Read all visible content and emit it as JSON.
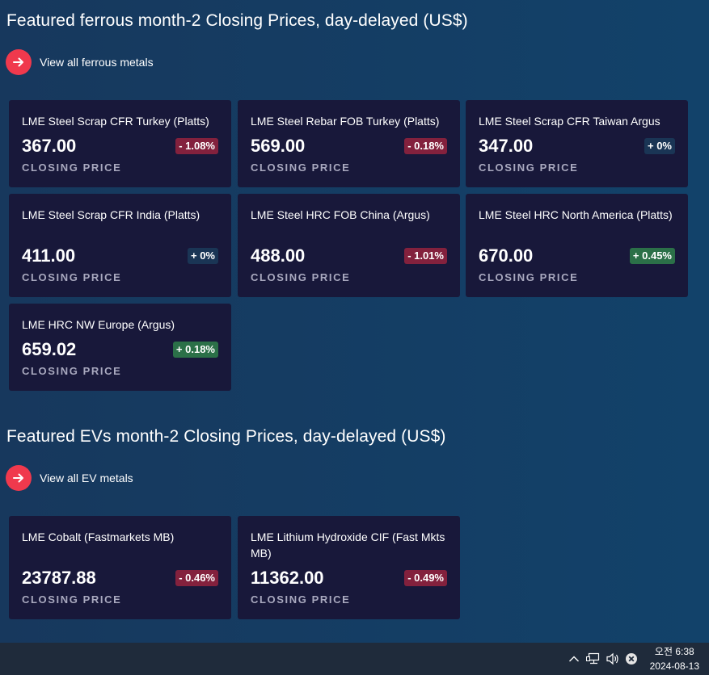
{
  "ferrous": {
    "title": "Featured ferrous month-2 Closing Prices, day-delayed (US$)",
    "view_all": "View all ferrous metals",
    "cards": [
      {
        "name": "LME Steel Scrap CFR Turkey (Platts)",
        "price": "367.00",
        "change": "- 1.08%",
        "closing": "CLOSING PRICE"
      },
      {
        "name": "LME Steel Rebar FOB Turkey (Platts)",
        "price": "569.00",
        "change": "- 0.18%",
        "closing": "CLOSING PRICE"
      },
      {
        "name": "LME Steel Scrap CFR Taiwan Argus",
        "price": "347.00",
        "change": "+ 0%",
        "closing": "CLOSING PRICE"
      },
      {
        "name": "LME Steel Scrap CFR India (Platts)",
        "price": "411.00",
        "change": "+ 0%",
        "closing": "CLOSING PRICE"
      },
      {
        "name": "LME Steel HRC FOB China (Argus)",
        "price": "488.00",
        "change": "- 1.01%",
        "closing": "CLOSING PRICE"
      },
      {
        "name": "LME Steel HRC North America (Platts)",
        "price": "670.00",
        "change": "+ 0.45%",
        "closing": "CLOSING PRICE"
      },
      {
        "name": "LME HRC NW Europe (Argus)",
        "price": "659.02",
        "change": "+ 0.18%",
        "closing": "CLOSING PRICE"
      }
    ]
  },
  "ev": {
    "title": "Featured EVs month-2 Closing Prices, day-delayed (US$)",
    "view_all": "View all EV metals",
    "cards": [
      {
        "name": "LME Cobalt (Fastmarkets MB)",
        "price": "23787.88",
        "change": "- 0.46%",
        "closing": "CLOSING PRICE"
      },
      {
        "name": "LME Lithium Hydroxide CIF (Fast Mkts MB)",
        "price": "11362.00",
        "change": "- 0.49%",
        "closing": "CLOSING PRICE"
      }
    ]
  },
  "colors": {
    "accent": "#f0394d",
    "down": "#83213d",
    "up": "#2b7048",
    "flat": "#1a3555",
    "card_bg": "#18183a"
  },
  "taskbar": {
    "time": "오전 6:38",
    "date": "2024-08-13",
    "icons": [
      "chevron-up-icon",
      "network-icon",
      "speaker-icon",
      "close-circle-icon"
    ]
  }
}
